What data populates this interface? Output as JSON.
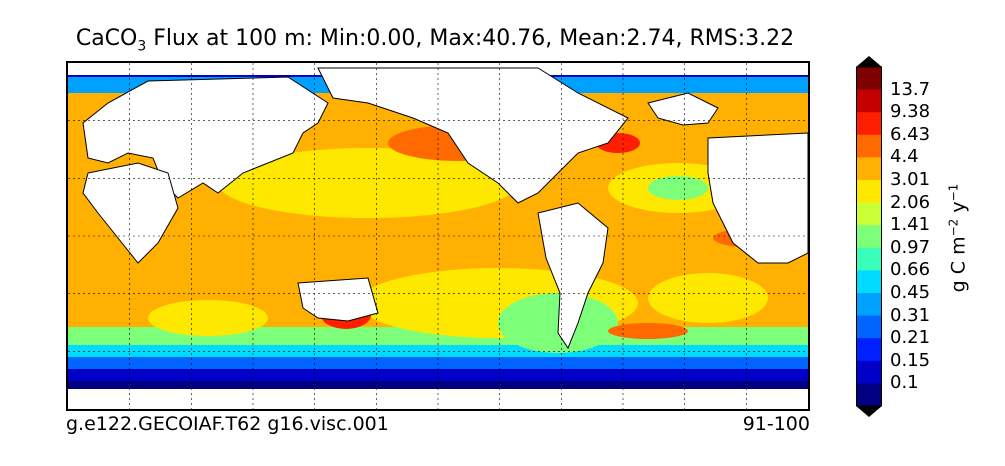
{
  "title": {
    "prefix": "CaCO",
    "subscript": "3",
    "rest": " Flux at 100 m: Min:0.00, Max:40.76, Mean:2.74, RMS:3.22"
  },
  "footer": {
    "case_name": "g.e122.GECOIAF.T62 g16.visc.001",
    "years": "91-100"
  },
  "colorbar": {
    "label_base": "g C m",
    "label_exp1": "−2",
    "label_mid": " y",
    "label_exp2": "−1",
    "ticks": [
      "13.7",
      "9.38",
      "6.43",
      "4.4",
      "3.01",
      "2.06",
      "1.41",
      "0.97",
      "0.66",
      "0.45",
      "0.31",
      "0.21",
      "0.15",
      "0.1"
    ],
    "colors": [
      "#7f0000",
      "#c40000",
      "#ff1e00",
      "#ff6a00",
      "#ffb000",
      "#ffe800",
      "#c8ff35",
      "#7dff7a",
      "#3affba",
      "#00dcff",
      "#00a0ff",
      "#0064ff",
      "#0020ff",
      "#0000c8",
      "#000080"
    ],
    "over_color": "#000000",
    "under_color": "#000000"
  },
  "map": {
    "land_color": "#ffffff",
    "coastline_color": "#000000",
    "grid": true,
    "projection": "cylindrical global"
  }
}
